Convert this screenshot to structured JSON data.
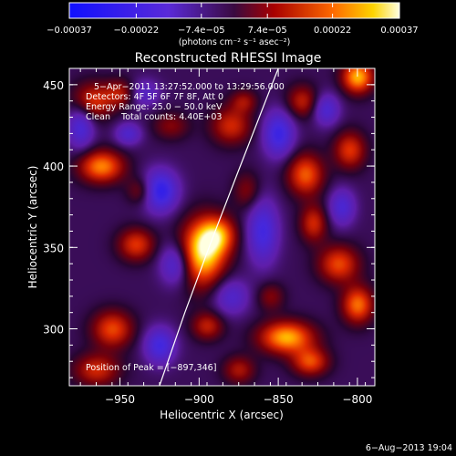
{
  "chart_data": {
    "type": "heatmap",
    "title": "Reconstructed RHESSI Image",
    "xlabel": "Heliocentric X (arcsec)",
    "ylabel": "Heliocentric Y (arcsec)",
    "xlim": [
      -982,
      -789
    ],
    "ylim": [
      265,
      460
    ],
    "x_ticks": [
      -950,
      -900,
      -850,
      -800
    ],
    "x_tick_labels": [
      "−950",
      "−900",
      "−850",
      "−800"
    ],
    "y_ticks": [
      300,
      350,
      400,
      450
    ],
    "y_tick_labels": [
      "300",
      "350",
      "400",
      "450"
    ],
    "colorbar": {
      "min": -0.00037,
      "max": 0.00037,
      "ticks": [
        -0.00037,
        -0.00022,
        -7.4e-05,
        7.4e-05,
        0.00022,
        0.00037
      ],
      "tick_labels": [
        "−0.00037",
        "−0.00022",
        "−7.4e−05",
        "7.4e−05",
        "0.00022",
        "0.00037"
      ],
      "unit_label": "(photons cm⁻² s⁻¹ asec⁻²)"
    },
    "info_lines": [
      "5−Apr−2011 13:27:52.000 to 13:29:56.000",
      "Detectors: 4F 5F 6F 7F 8F, Att 0",
      "Energy Range: 25.0 − 50.0 keV",
      "Clean    Total counts: 4.40E+03"
    ],
    "peak_label": "Position of Peak = [−897,346]",
    "peak": [
      -897,
      346
    ],
    "limb_curve": [
      [
        -925,
        265
      ],
      [
        -909,
        310
      ],
      [
        -893,
        352
      ],
      [
        -876,
        395
      ],
      [
        -858,
        440
      ],
      [
        -850,
        460
      ]
    ],
    "blobs": [
      {
        "x": -898,
        "y": 347,
        "sx": 10,
        "sy": 14,
        "amp": 1.0
      },
      {
        "x": -888,
        "y": 358,
        "sx": 8,
        "sy": 8,
        "amp": 0.6
      },
      {
        "x": -962,
        "y": 400,
        "sx": 10,
        "sy": 7,
        "amp": 0.75
      },
      {
        "x": -968,
        "y": 440,
        "sx": 9,
        "sy": 8,
        "amp": 0.55
      },
      {
        "x": -950,
        "y": 445,
        "sx": 7,
        "sy": 6,
        "amp": 0.4
      },
      {
        "x": -937,
        "y": 385,
        "sx": 6,
        "sy": 6,
        "amp": 0.35
      },
      {
        "x": -940,
        "y": 352,
        "sx": 8,
        "sy": 7,
        "amp": 0.55
      },
      {
        "x": -955,
        "y": 300,
        "sx": 9,
        "sy": 8,
        "amp": 0.6
      },
      {
        "x": -965,
        "y": 275,
        "sx": 10,
        "sy": 7,
        "amp": 0.5
      },
      {
        "x": -880,
        "y": 425,
        "sx": 9,
        "sy": 8,
        "amp": 0.5
      },
      {
        "x": -872,
        "y": 440,
        "sx": 6,
        "sy": 5,
        "amp": 0.35
      },
      {
        "x": -870,
        "y": 385,
        "sx": 6,
        "sy": 8,
        "amp": 0.3
      },
      {
        "x": -895,
        "y": 302,
        "sx": 7,
        "sy": 6,
        "amp": 0.45
      },
      {
        "x": -855,
        "y": 320,
        "sx": 6,
        "sy": 6,
        "amp": 0.3
      },
      {
        "x": -833,
        "y": 395,
        "sx": 8,
        "sy": 9,
        "amp": 0.65
      },
      {
        "x": -828,
        "y": 365,
        "sx": 6,
        "sy": 8,
        "amp": 0.5
      },
      {
        "x": -835,
        "y": 440,
        "sx": 7,
        "sy": 7,
        "amp": 0.45
      },
      {
        "x": -800,
        "y": 455,
        "sx": 7,
        "sy": 7,
        "amp": 0.85
      },
      {
        "x": -805,
        "y": 410,
        "sx": 7,
        "sy": 8,
        "amp": 0.55
      },
      {
        "x": -812,
        "y": 340,
        "sx": 9,
        "sy": 8,
        "amp": 0.6
      },
      {
        "x": -800,
        "y": 315,
        "sx": 7,
        "sy": 8,
        "amp": 0.7
      },
      {
        "x": -845,
        "y": 295,
        "sx": 12,
        "sy": 7,
        "amp": 0.85
      },
      {
        "x": -830,
        "y": 280,
        "sx": 8,
        "sy": 6,
        "amp": 0.6
      },
      {
        "x": -875,
        "y": 275,
        "sx": 7,
        "sy": 6,
        "amp": 0.4
      },
      {
        "x": -918,
        "y": 425,
        "sx": 8,
        "sy": 6,
        "amp": 0.3
      },
      {
        "x": -945,
        "y": 420,
        "sx": 6,
        "sy": 5,
        "amp": -0.4
      },
      {
        "x": -925,
        "y": 385,
        "sx": 8,
        "sy": 9,
        "amp": -0.7
      },
      {
        "x": -915,
        "y": 340,
        "sx": 7,
        "sy": 9,
        "amp": -0.5
      },
      {
        "x": -925,
        "y": 290,
        "sx": 7,
        "sy": 8,
        "amp": -0.55
      },
      {
        "x": -975,
        "y": 425,
        "sx": 6,
        "sy": 10,
        "amp": -0.5
      },
      {
        "x": -860,
        "y": 360,
        "sx": 7,
        "sy": 14,
        "amp": -0.55
      },
      {
        "x": -850,
        "y": 420,
        "sx": 7,
        "sy": 10,
        "amp": -0.6
      },
      {
        "x": -820,
        "y": 435,
        "sx": 6,
        "sy": 7,
        "amp": -0.45
      },
      {
        "x": -880,
        "y": 320,
        "sx": 8,
        "sy": 8,
        "amp": -0.4
      },
      {
        "x": -810,
        "y": 375,
        "sx": 6,
        "sy": 8,
        "amp": -0.45
      },
      {
        "x": -935,
        "y": 445,
        "sx": 7,
        "sy": 6,
        "amp": -0.35
      }
    ]
  },
  "footer_date": "6−Aug−2013 19:04"
}
